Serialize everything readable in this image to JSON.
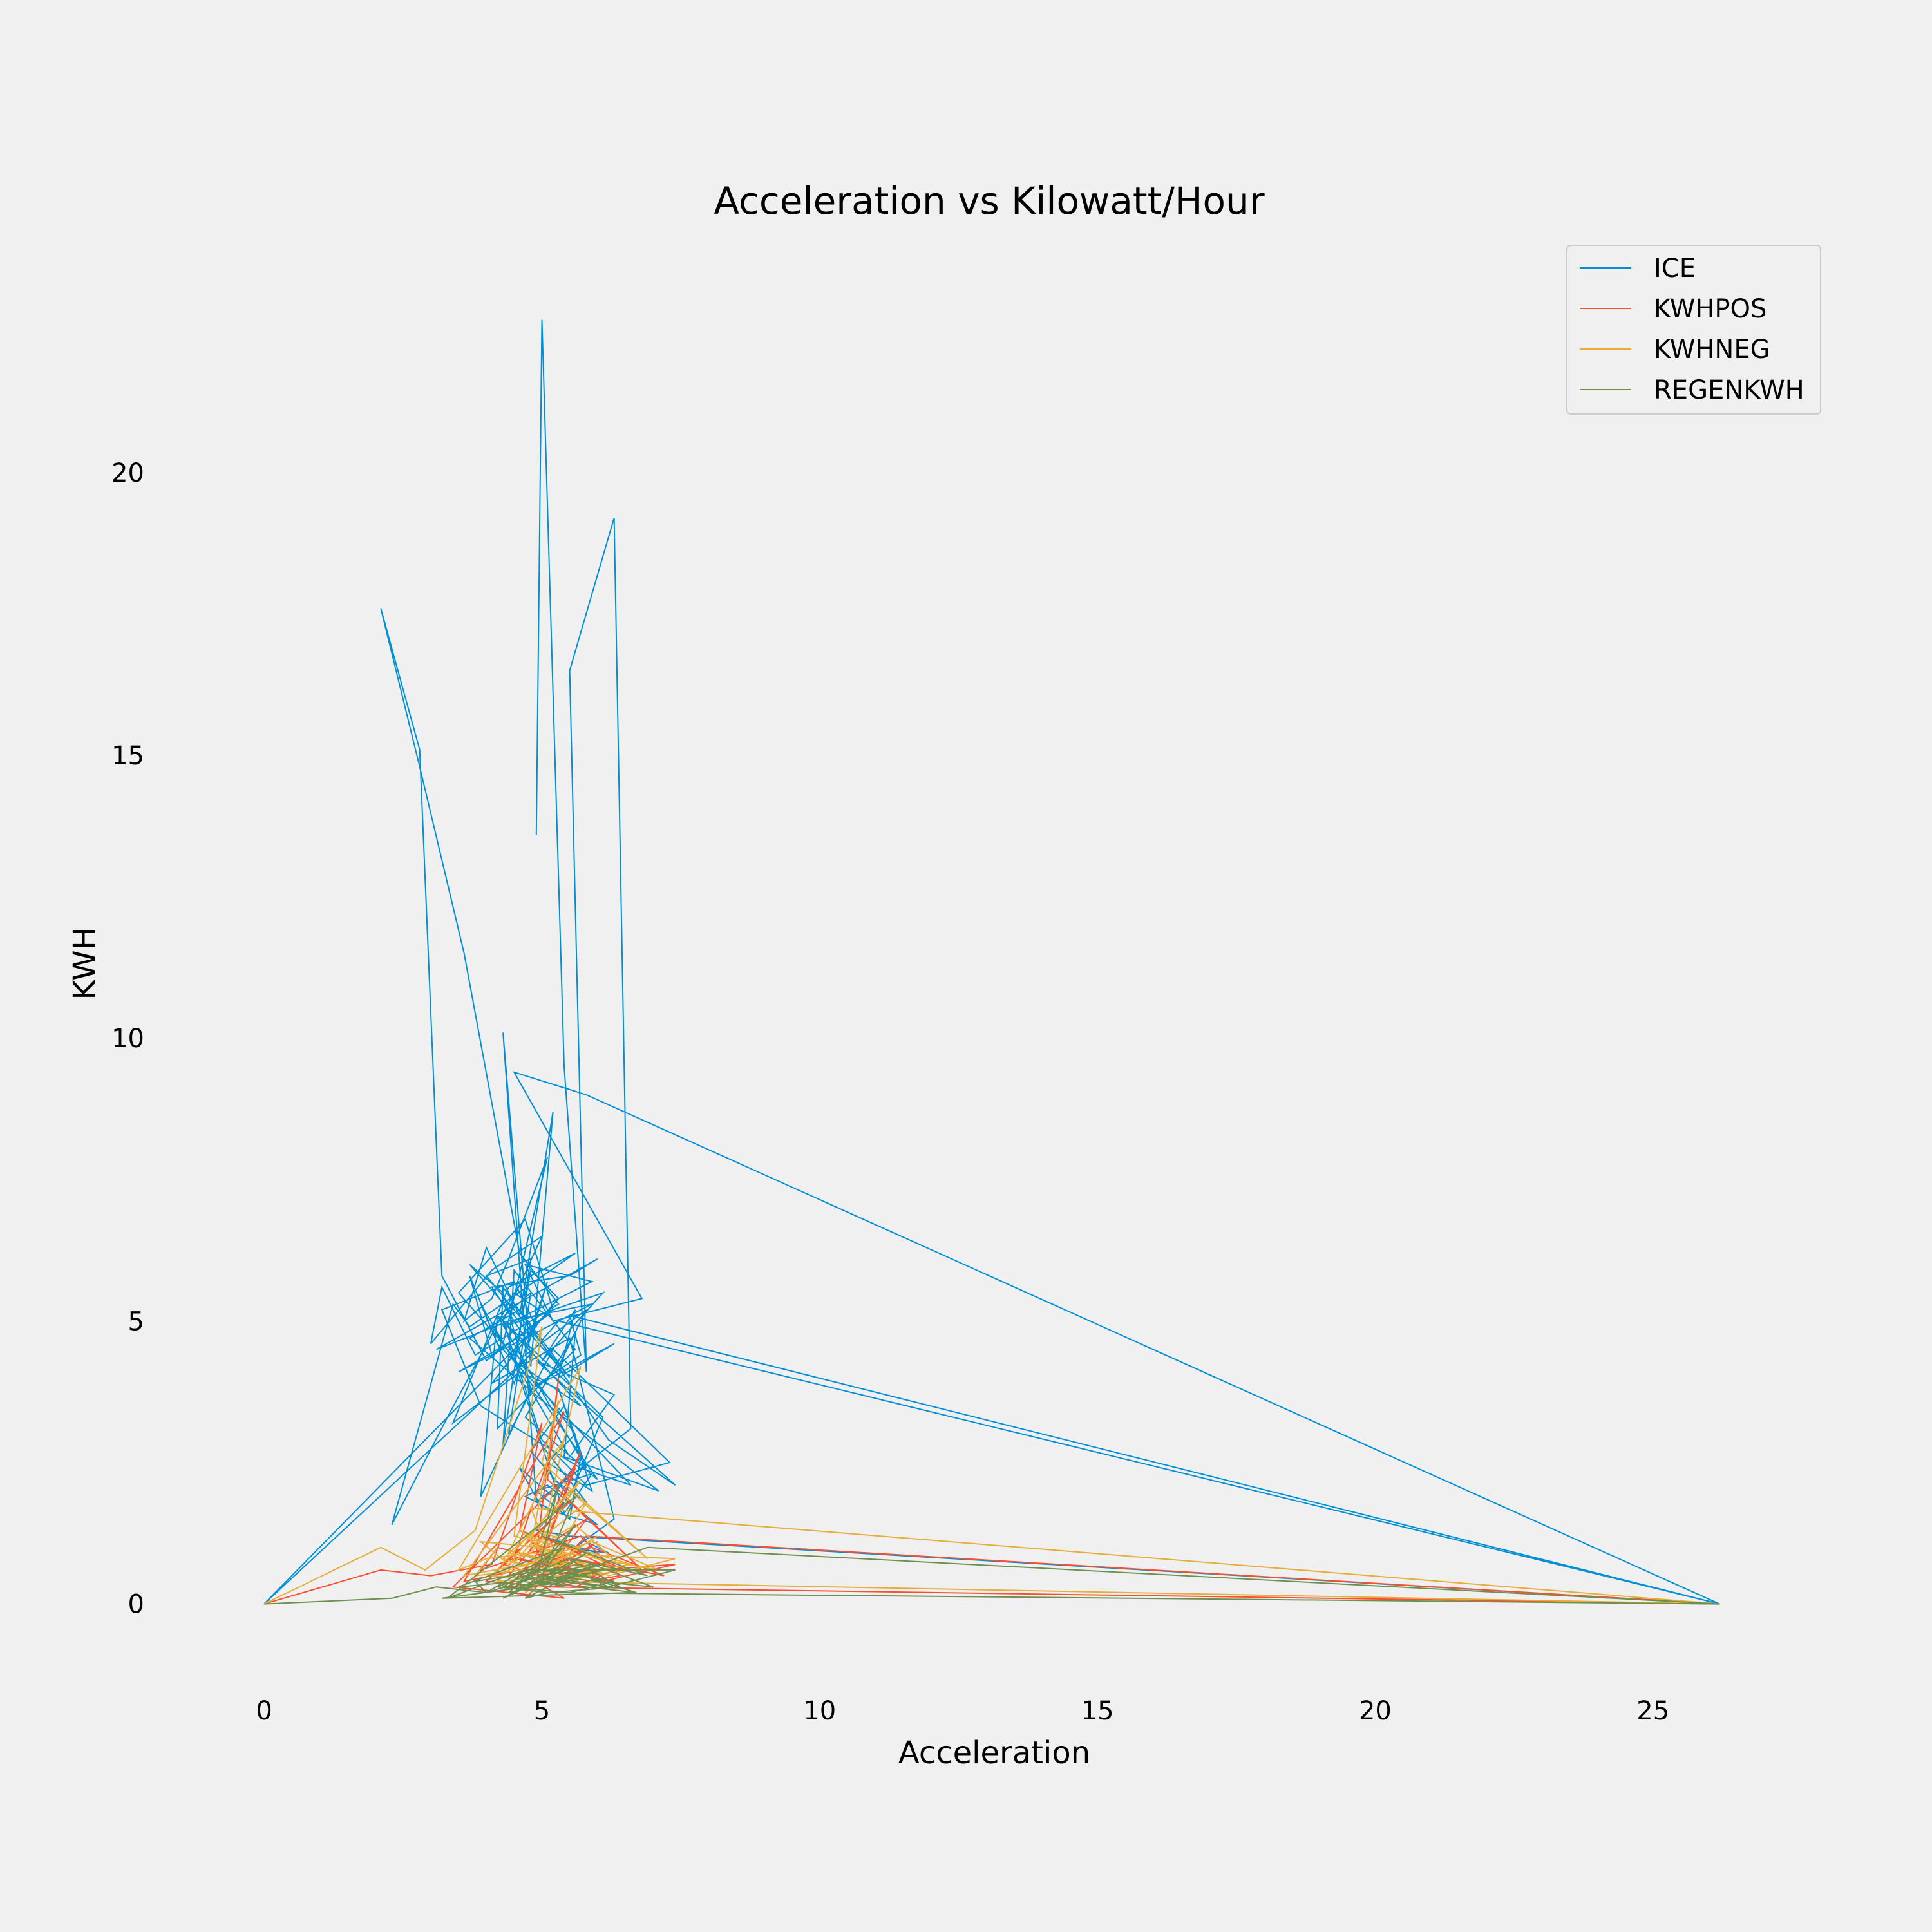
{
  "colors": {
    "background": "#f0f0f0",
    "legend_face": "#f0f0f0",
    "legend_edge": "#cccccc"
  },
  "chart_data": {
    "type": "line",
    "title": "Acceleration vs Kilowatt/Hour",
    "xlabel": "Acceleration",
    "ylabel": "KWH",
    "xlim": [
      -1.3,
      27.6
    ],
    "ylim": [
      -1.2,
      23.8
    ],
    "xticks": [
      0,
      5,
      10,
      15,
      20,
      25
    ],
    "yticks": [
      0,
      5,
      10,
      15,
      20
    ],
    "grid": false,
    "legend_position": "top-right",
    "series": [
      {
        "name": "ICE",
        "color": "#008fd5",
        "x": [
          4.9,
          5.0,
          5.4,
          5.8,
          5.5,
          6.3,
          6.6,
          5.7,
          4.9,
          4.3,
          4.8,
          5.2,
          4.6,
          4.0,
          3.6,
          4.1,
          4.4,
          5.1,
          4.3,
          3.5,
          4.7,
          5.2,
          4.0,
          3.2,
          2.8,
          2.1,
          2.8,
          3.6,
          4.6,
          5.3,
          3.8,
          3.2,
          3.0,
          4.1,
          5.0,
          4.3,
          4.6,
          3.4,
          4.4,
          5.6,
          3.7,
          3.4,
          2.3,
          3.3,
          4.5,
          5.1,
          4.1,
          3.7,
          4.2,
          6.6,
          5.7,
          3.9,
          3.2,
          4.5,
          4.9,
          3.5,
          5.9,
          4.4,
          3.1,
          6.0,
          5.5,
          4.1,
          4.7,
          5.3,
          4.8,
          4.5,
          5.7,
          4.2,
          3.9,
          4.8,
          4.3,
          3.7,
          5.3,
          5.8,
          4.7,
          5.1,
          4.5,
          4.2,
          3.9,
          5.5,
          6.3,
          4.9,
          7.4,
          6.2,
          4.3,
          4.2,
          5.6,
          4.5,
          4.3,
          4.8,
          4.0,
          5.5,
          4.6,
          3.7,
          5.0,
          7.1,
          5.4,
          5.6,
          4.7,
          6.0,
          4.1,
          4.8,
          4.4,
          5.2,
          7.3,
          5.8,
          5.0,
          4.6,
          5.3,
          5.8,
          4.2,
          6.1,
          5.5,
          4.8,
          5.4,
          5.9,
          5.1,
          5.6,
          4.4,
          5.2,
          5.8,
          5.0,
          5.4,
          5.9,
          4.9,
          5.5,
          5.7,
          5.2,
          4.6,
          5.0,
          6.0,
          5.1,
          4.7,
          5.3,
          5.4,
          4.9,
          5.5,
          26.2,
          5.8,
          4.5,
          6.8,
          5.2,
          4.7,
          5.9,
          4.3,
          6.1,
          5.0,
          5.6,
          5.3,
          6.3,
          4.8,
          5.7,
          5.5,
          26.2,
          5.3,
          4.6,
          0.0,
          4.8,
          5.2,
          4.1,
          5.5,
          6.3,
          5.6,
          5.0,
          6.0,
          5.8,
          6.2,
          5.4
        ],
        "y": [
          13.6,
          22.7,
          9.5,
          4.1,
          16.5,
          19.2,
          3.1,
          2.4,
          1.8,
          10.1,
          4.2,
          8.7,
          5.1,
          6.3,
          5.0,
          5.4,
          6.1,
          7.9,
          4.6,
          5.5,
          6.8,
          5.2,
          4.3,
          5.8,
          15.1,
          17.6,
          14.8,
          11.5,
          6.2,
          5.3,
          4.4,
          5.6,
          4.6,
          5.9,
          6.5,
          5.0,
          4.1,
          3.2,
          5.6,
          6.2,
          4.9,
          5.3,
          1.4,
          3.3,
          5.5,
          5.1,
          4.4,
          5.8,
          4.6,
          2.1,
          2.4,
          3.5,
          5.2,
          5.7,
          4.9,
          4.1,
          5.3,
          5.0,
          4.5,
          6.1,
          5.8,
          5.6,
          4.7,
          5.4,
          5.9,
          4.3,
          3.5,
          5.1,
          1.9,
          3.8,
          5.5,
          6.0,
          4.2,
          5.2,
          4.4,
          5.7,
          3.9,
          4.6,
          5.3,
          2.6,
          3.7,
          4.3,
          2.1,
          2.9,
          5.6,
          3.1,
          4.5,
          5.9,
          2.8,
          6.1,
          5.8,
          4.0,
          5.2,
          4.7,
          3.6,
          2.0,
          2.6,
          4.8,
          3.3,
          2.2,
          4.9,
          5.5,
          3.0,
          4.5,
          2.5,
          2.1,
          2.9,
          4.1,
          3.8,
          2.4,
          5.1,
          3.3,
          1.9,
          2.7,
          3.5,
          2.0,
          2.5,
          3.0,
          4.6,
          2.2,
          1.8,
          2.8,
          1.6,
          2.3,
          2.0,
          1.5,
          2.6,
          1.9,
          2.4,
          1.7,
          1.4,
          2.1,
          1.9,
          1.6,
          1.8,
          1.3,
          1.2,
          0.0,
          9.0,
          9.4,
          5.4,
          5.0,
          6.0,
          5.7,
          4.9,
          5.5,
          4.3,
          5.2,
          4.0,
          4.6,
          3.8,
          4.4,
          5.1,
          0.0,
          5.0,
          4.2,
          0.0,
          4.8,
          5.3,
          3.9,
          4.7,
          1.5,
          1.0,
          1.2,
          0.9,
          1.1,
          0.9,
          1.0
        ]
      },
      {
        "name": "KWHPOS",
        "color": "#fc4f30",
        "x": [
          0.0,
          2.1,
          3.0,
          4.1,
          5.0,
          4.6,
          5.8,
          6.5,
          5.3,
          4.4,
          5.1,
          5.6,
          3.4,
          5.4,
          4.7,
          7.4,
          6.1,
          5.0,
          4.2,
          3.9,
          5.7,
          6.4,
          5.2,
          4.0,
          5.5,
          6.8,
          5.1,
          5.3,
          4.9,
          5.8,
          5.2,
          4.8,
          6.1,
          4.5,
          5.4,
          3.6,
          4.6,
          5.9,
          7.2,
          5.0,
          5.7,
          5.1,
          4.3,
          5.6,
          6.3,
          5.0,
          4.4,
          5.5,
          6.0,
          5.2,
          5.8,
          26.2,
          5.1,
          4.7,
          5.3,
          6.2,
          5.9,
          4.9,
          5.4,
          4.6,
          5.5
        ],
        "y": [
          0.0,
          0.6,
          0.5,
          0.7,
          3.2,
          1.3,
          0.9,
          0.6,
          0.4,
          0.3,
          1.1,
          2.4,
          0.3,
          0.1,
          0.5,
          0.7,
          0.4,
          0.8,
          1.0,
          0.6,
          1.2,
          0.5,
          0.3,
          0.4,
          1.8,
          0.6,
          2.2,
          4.0,
          0.9,
          1.5,
          0.7,
          1.1,
          0.5,
          0.8,
          3.4,
          0.4,
          0.6,
          1.0,
          0.5,
          0.9,
          2.7,
          1.4,
          0.7,
          0.3,
          0.6,
          1.2,
          0.5,
          0.8,
          1.1,
          0.6,
          1.2,
          0.0,
          0.3,
          0.1,
          0.7,
          0.4,
          0.6,
          0.9,
          0.5,
          0.8,
          0.6
        ]
      },
      {
        "name": "KWHNEG",
        "color": "#e5ae38",
        "x": [
          0.0,
          2.1,
          2.9,
          3.8,
          5.0,
          4.5,
          5.9,
          6.6,
          5.4,
          4.2,
          5.1,
          5.7,
          3.5,
          4.0,
          4.8,
          7.4,
          6.2,
          5.0,
          3.9,
          4.4,
          5.6,
          6.5,
          5.2,
          4.1,
          5.5,
          6.9,
          5.0,
          5.3,
          4.8,
          5.8,
          5.2,
          4.6,
          6.0,
          4.4,
          5.4,
          3.6,
          4.7,
          5.9,
          7.1,
          4.9,
          5.7,
          5.1,
          4.3,
          5.6,
          6.2,
          5.0,
          4.4,
          5.5,
          6.0,
          5.2,
          4.8,
          26.2,
          5.0,
          4.7,
          5.3,
          6.1,
          5.8,
          4.9,
          5.4,
          4.6,
          5.5,
          3.8,
          4.2
        ],
        "y": [
          0.0,
          1.0,
          0.6,
          1.3,
          4.9,
          1.2,
          0.9,
          0.7,
          0.5,
          0.4,
          1.6,
          4.2,
          0.6,
          0.8,
          0.9,
          0.8,
          0.5,
          1.0,
          1.1,
          0.7,
          1.4,
          0.6,
          0.4,
          0.5,
          2.0,
          0.8,
          2.5,
          3.6,
          1.0,
          1.8,
          0.8,
          1.3,
          0.6,
          0.9,
          2.9,
          0.5,
          0.7,
          1.1,
          0.6,
          1.0,
          2.2,
          1.5,
          0.8,
          0.4,
          0.7,
          1.3,
          0.6,
          0.9,
          1.2,
          0.7,
          1.7,
          0.0,
          0.4,
          0.2,
          0.8,
          0.5,
          0.7,
          1.0,
          0.6,
          0.9,
          0.7,
          0.5,
          1.0
        ]
      },
      {
        "name": "REGENKWH",
        "color": "#6d904f",
        "x": [
          0.0,
          2.3,
          3.1,
          4.0,
          5.2,
          4.6,
          5.8,
          6.7,
          5.4,
          4.3,
          5.0,
          5.6,
          3.3,
          4.1,
          4.7,
          7.4,
          6.2,
          5.0,
          4.0,
          3.8,
          5.7,
          6.4,
          5.1,
          4.2,
          5.5,
          6.9,
          5.0,
          5.3,
          4.9,
          5.8,
          5.2,
          4.6,
          6.1,
          4.4,
          5.4,
          3.5,
          4.6,
          5.9,
          7.0,
          5.0,
          5.6,
          5.1,
          4.3,
          5.5,
          6.3,
          5.0,
          4.5,
          5.4,
          6.0,
          5.2,
          6.9,
          26.2,
          5.1,
          4.7,
          5.3,
          6.2,
          5.8,
          4.9,
          5.4,
          4.6,
          5.5,
          3.2,
          6.6
        ],
        "y": [
          0.0,
          0.1,
          0.3,
          0.2,
          0.9,
          0.4,
          0.3,
          0.2,
          0.6,
          0.1,
          0.5,
          1.9,
          0.1,
          0.4,
          0.6,
          0.6,
          0.3,
          0.5,
          0.2,
          0.4,
          0.7,
          0.3,
          0.2,
          0.3,
          0.8,
          0.5,
          1.2,
          2.1,
          0.4,
          0.9,
          0.5,
          0.3,
          0.6,
          0.2,
          1.0,
          0.3,
          0.4,
          0.7,
          0.3,
          0.5,
          1.4,
          0.8,
          0.3,
          0.2,
          0.4,
          0.6,
          0.3,
          0.5,
          0.7,
          0.4,
          1.0,
          0.0,
          0.2,
          0.1,
          0.4,
          0.3,
          0.5,
          0.6,
          0.3,
          0.5,
          0.4,
          0.1,
          0.2
        ]
      }
    ]
  }
}
